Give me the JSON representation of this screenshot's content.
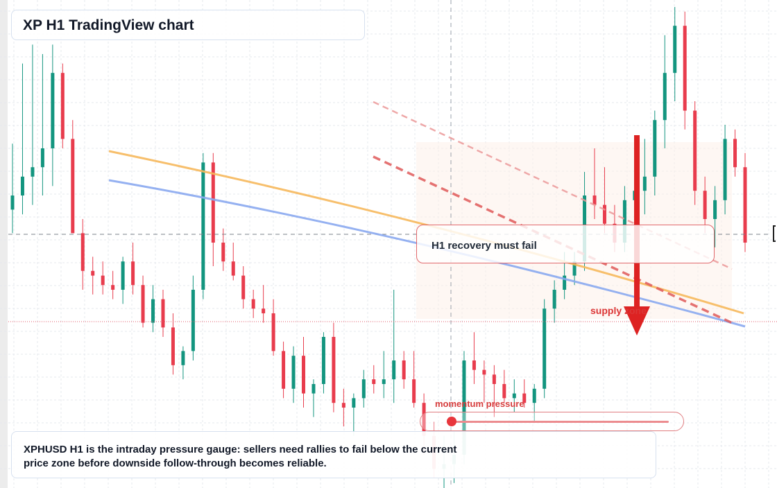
{
  "title": "XP H1 TradingView chart",
  "description": "XPHUSD H1 is the intraday pressure gauge: sellers need rallies to fail below the current price zone before downside follow-through becomes reliable.",
  "callout_text": "H1 recovery must fail",
  "supply_label": "supply zone",
  "momentum_label": "momentum pressure",
  "colors": {
    "bull": "#13957f",
    "bear": "#e83c4d",
    "ma_fast": "#f6b85c",
    "ma_slow": "#8aa8f0",
    "trend_red": "#e05a5a",
    "arrow": "#dd2222",
    "grid": "#e6e9ee"
  },
  "chart_data": {
    "type": "candlestick",
    "title": "XP H1 TradingView chart",
    "y_range_pct": [
      0,
      100
    ],
    "candles_pct_scale": [
      {
        "o": 57,
        "h": 71,
        "l": 52,
        "c": 60
      },
      {
        "o": 60,
        "h": 88,
        "l": 56,
        "c": 64
      },
      {
        "o": 64,
        "h": 92,
        "l": 58,
        "c": 66
      },
      {
        "o": 66,
        "h": 90,
        "l": 60,
        "c": 70
      },
      {
        "o": 70,
        "h": 92,
        "l": 62,
        "c": 86
      },
      {
        "o": 86,
        "h": 88,
        "l": 70,
        "c": 72
      },
      {
        "o": 72,
        "h": 76,
        "l": 58,
        "c": 52
      },
      {
        "o": 52,
        "h": 55,
        "l": 40,
        "c": 44
      },
      {
        "o": 44,
        "h": 47,
        "l": 39,
        "c": 43
      },
      {
        "o": 43,
        "h": 46,
        "l": 39,
        "c": 41
      },
      {
        "o": 41,
        "h": 44,
        "l": 38,
        "c": 40
      },
      {
        "o": 40,
        "h": 47,
        "l": 37,
        "c": 46
      },
      {
        "o": 46,
        "h": 50,
        "l": 39,
        "c": 41
      },
      {
        "o": 41,
        "h": 43,
        "l": 32,
        "c": 33
      },
      {
        "o": 33,
        "h": 41,
        "l": 31,
        "c": 38
      },
      {
        "o": 38,
        "h": 40,
        "l": 30,
        "c": 32
      },
      {
        "o": 32,
        "h": 35,
        "l": 22,
        "c": 24
      },
      {
        "o": 24,
        "h": 28,
        "l": 21,
        "c": 27
      },
      {
        "o": 27,
        "h": 43,
        "l": 25,
        "c": 40
      },
      {
        "o": 40,
        "h": 69,
        "l": 38,
        "c": 67
      },
      {
        "o": 67,
        "h": 69,
        "l": 45,
        "c": 50
      },
      {
        "o": 50,
        "h": 53,
        "l": 44,
        "c": 46
      },
      {
        "o": 46,
        "h": 50,
        "l": 42,
        "c": 43
      },
      {
        "o": 43,
        "h": 45,
        "l": 36,
        "c": 38
      },
      {
        "o": 38,
        "h": 40,
        "l": 34,
        "c": 36
      },
      {
        "o": 36,
        "h": 41,
        "l": 33,
        "c": 35
      },
      {
        "o": 35,
        "h": 38,
        "l": 26,
        "c": 27
      },
      {
        "o": 27,
        "h": 29,
        "l": 17,
        "c": 19
      },
      {
        "o": 19,
        "h": 28,
        "l": 16,
        "c": 26
      },
      {
        "o": 26,
        "h": 30,
        "l": 15,
        "c": 18
      },
      {
        "o": 18,
        "h": 21,
        "l": 13,
        "c": 20
      },
      {
        "o": 20,
        "h": 31,
        "l": 18,
        "c": 30
      },
      {
        "o": 30,
        "h": 33,
        "l": 14,
        "c": 16
      },
      {
        "o": 16,
        "h": 19,
        "l": 11,
        "c": 15
      },
      {
        "o": 15,
        "h": 18,
        "l": 9,
        "c": 17
      },
      {
        "o": 17,
        "h": 23,
        "l": 15,
        "c": 21
      },
      {
        "o": 21,
        "h": 24,
        "l": 18,
        "c": 20
      },
      {
        "o": 20,
        "h": 27,
        "l": 17,
        "c": 21
      },
      {
        "o": 21,
        "h": 40,
        "l": 16,
        "c": 25
      },
      {
        "o": 25,
        "h": 27,
        "l": 19,
        "c": 21
      },
      {
        "o": 21,
        "h": 27,
        "l": 15,
        "c": 16
      },
      {
        "o": 16,
        "h": 18,
        "l": 5,
        "c": 9
      },
      {
        "o": 9,
        "h": 12,
        "l": 0,
        "c": 2
      },
      {
        "o": 2,
        "h": 9,
        "l": -3,
        "c": 3
      },
      {
        "o": 3,
        "h": 10,
        "l": -1,
        "c": 5
      },
      {
        "o": 5,
        "h": 27,
        "l": 3,
        "c": 25
      },
      {
        "o": 25,
        "h": 31,
        "l": 20,
        "c": 23
      },
      {
        "o": 23,
        "h": 25,
        "l": 16,
        "c": 22
      },
      {
        "o": 22,
        "h": 24,
        "l": 13,
        "c": 20
      },
      {
        "o": 20,
        "h": 23,
        "l": 16,
        "c": 17
      },
      {
        "o": 17,
        "h": 21,
        "l": 14,
        "c": 18
      },
      {
        "o": 18,
        "h": 21,
        "l": 15,
        "c": 16
      },
      {
        "o": 16,
        "h": 20,
        "l": 12,
        "c": 19
      },
      {
        "o": 19,
        "h": 38,
        "l": 17,
        "c": 36
      },
      {
        "o": 36,
        "h": 42,
        "l": 33,
        "c": 40
      },
      {
        "o": 40,
        "h": 48,
        "l": 38,
        "c": 43
      },
      {
        "o": 43,
        "h": 48,
        "l": 41,
        "c": 46
      },
      {
        "o": 46,
        "h": 65,
        "l": 44,
        "c": 60
      },
      {
        "o": 60,
        "h": 70,
        "l": 55,
        "c": 58
      },
      {
        "o": 58,
        "h": 66,
        "l": 52,
        "c": 54
      },
      {
        "o": 54,
        "h": 58,
        "l": 48,
        "c": 50
      },
      {
        "o": 50,
        "h": 62,
        "l": 48,
        "c": 59
      },
      {
        "o": 59,
        "h": 67,
        "l": 55,
        "c": 61
      },
      {
        "o": 61,
        "h": 72,
        "l": 56,
        "c": 64
      },
      {
        "o": 64,
        "h": 78,
        "l": 60,
        "c": 76
      },
      {
        "o": 76,
        "h": 94,
        "l": 70,
        "c": 86
      },
      {
        "o": 86,
        "h": 100,
        "l": 80,
        "c": 96
      },
      {
        "o": 96,
        "h": 99,
        "l": 74,
        "c": 78
      },
      {
        "o": 78,
        "h": 80,
        "l": 58,
        "c": 61
      },
      {
        "o": 61,
        "h": 64,
        "l": 52,
        "c": 55
      },
      {
        "o": 55,
        "h": 62,
        "l": 49,
        "c": 59
      },
      {
        "o": 59,
        "h": 75,
        "l": 56,
        "c": 72
      },
      {
        "o": 72,
        "h": 74,
        "l": 64,
        "c": 66
      },
      {
        "o": 66,
        "h": 69,
        "l": 48,
        "c": 50
      }
    ]
  }
}
